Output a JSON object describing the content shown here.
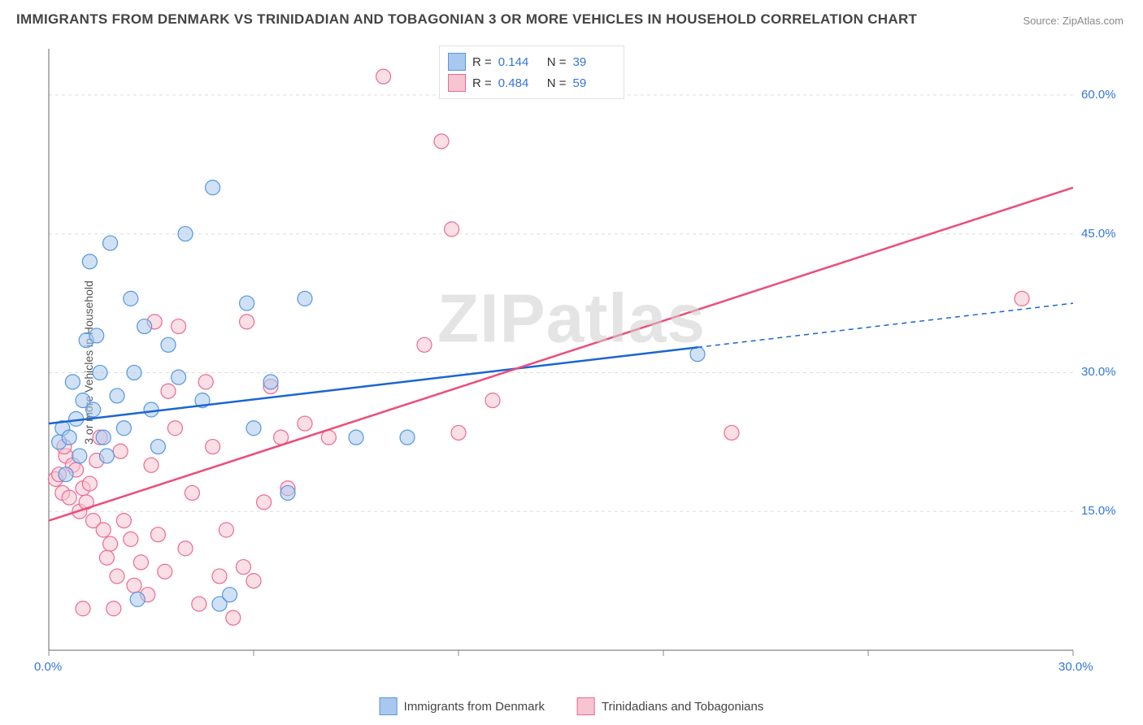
{
  "title": "IMMIGRANTS FROM DENMARK VS TRINIDADIAN AND TOBAGONIAN 3 OR MORE VEHICLES IN HOUSEHOLD CORRELATION CHART",
  "source": "Source: ZipAtlas.com",
  "yaxis_label": "3 or more Vehicles in Household",
  "watermark": "ZIPatlas",
  "chart": {
    "type": "scatter",
    "background_color": "#ffffff",
    "grid_color": "#dddddd",
    "axis_color": "#666666",
    "tick_color": "#888888",
    "tick_label_color": "#3376d6",
    "label_fontsize": 14,
    "tick_fontsize": 15,
    "title_fontsize": 17,
    "marker_radius": 9,
    "marker_opacity": 0.55,
    "xlim": [
      0,
      30
    ],
    "ylim": [
      0,
      65
    ],
    "x_tick_positions": [
      0,
      6,
      12,
      18,
      24,
      30
    ],
    "x_tick_labels": [
      "0.0%",
      "",
      "",
      "",
      "",
      "30.0%"
    ],
    "y_gridlines": [
      15,
      30,
      45,
      60
    ],
    "y_tick_labels": [
      "15.0%",
      "30.0%",
      "45.0%",
      "60.0%"
    ],
    "series": [
      {
        "name": "Immigrants from Denmark",
        "color_fill": "#a9c8ef",
        "color_stroke": "#5596e0",
        "R": "0.144",
        "N": "39",
        "trend": {
          "color": "#1a66d1",
          "width": 2.5,
          "solid_range": [
            0,
            19
          ],
          "dashed_range": [
            19,
            30
          ],
          "y_at_x0": 24.5,
          "y_at_xmax": 37.5
        },
        "points": [
          [
            0.3,
            22.5
          ],
          [
            0.4,
            24.0
          ],
          [
            0.5,
            19.0
          ],
          [
            0.6,
            23.0
          ],
          [
            0.7,
            29.0
          ],
          [
            0.8,
            25.0
          ],
          [
            0.9,
            21.0
          ],
          [
            1.0,
            27.0
          ],
          [
            1.1,
            33.5
          ],
          [
            1.2,
            42.0
          ],
          [
            1.3,
            26.0
          ],
          [
            1.4,
            34.0
          ],
          [
            1.5,
            30.0
          ],
          [
            1.6,
            23.0
          ],
          [
            1.7,
            21.0
          ],
          [
            1.8,
            44.0
          ],
          [
            2.0,
            27.5
          ],
          [
            2.2,
            24.0
          ],
          [
            2.4,
            38.0
          ],
          [
            2.5,
            30.0
          ],
          [
            2.8,
            35.0
          ],
          [
            3.0,
            26.0
          ],
          [
            3.2,
            22.0
          ],
          [
            3.5,
            33.0
          ],
          [
            3.8,
            29.5
          ],
          [
            4.0,
            45.0
          ],
          [
            4.5,
            27.0
          ],
          [
            4.8,
            50.0
          ],
          [
            5.0,
            5.0
          ],
          [
            5.3,
            6.0
          ],
          [
            5.8,
            37.5
          ],
          [
            6.0,
            24.0
          ],
          [
            6.5,
            29.0
          ],
          [
            7.0,
            17.0
          ],
          [
            7.5,
            38.0
          ],
          [
            9.0,
            23.0
          ],
          [
            10.5,
            23.0
          ],
          [
            19.0,
            32.0
          ],
          [
            2.6,
            5.5
          ]
        ]
      },
      {
        "name": "Trinidadians and Tobagonians",
        "color_fill": "#f7c4d1",
        "color_stroke": "#ec6a8f",
        "R": "0.484",
        "N": "59",
        "trend": {
          "color": "#ec4d78",
          "width": 2.5,
          "solid_range": [
            0,
            30
          ],
          "dashed_range": null,
          "y_at_x0": 14.0,
          "y_at_xmax": 50.0
        },
        "points": [
          [
            0.2,
            18.5
          ],
          [
            0.3,
            19.0
          ],
          [
            0.4,
            17.0
          ],
          [
            0.5,
            21.0
          ],
          [
            0.6,
            16.5
          ],
          [
            0.7,
            20.0
          ],
          [
            0.8,
            19.5
          ],
          [
            0.9,
            15.0
          ],
          [
            1.0,
            17.5
          ],
          [
            1.1,
            16.0
          ],
          [
            1.2,
            18.0
          ],
          [
            1.3,
            14.0
          ],
          [
            1.4,
            20.5
          ],
          [
            1.5,
            23.0
          ],
          [
            1.6,
            13.0
          ],
          [
            1.7,
            10.0
          ],
          [
            1.8,
            11.5
          ],
          [
            1.9,
            4.5
          ],
          [
            2.0,
            8.0
          ],
          [
            2.2,
            14.0
          ],
          [
            2.4,
            12.0
          ],
          [
            2.5,
            7.0
          ],
          [
            2.7,
            9.5
          ],
          [
            2.9,
            6.0
          ],
          [
            3.0,
            20.0
          ],
          [
            3.2,
            12.5
          ],
          [
            3.4,
            8.5
          ],
          [
            3.5,
            28.0
          ],
          [
            3.7,
            24.0
          ],
          [
            3.8,
            35.0
          ],
          [
            4.0,
            11.0
          ],
          [
            4.2,
            17.0
          ],
          [
            4.4,
            5.0
          ],
          [
            4.6,
            29.0
          ],
          [
            4.8,
            22.0
          ],
          [
            5.0,
            8.0
          ],
          [
            5.2,
            13.0
          ],
          [
            5.4,
            3.5
          ],
          [
            5.7,
            9.0
          ],
          [
            5.8,
            35.5
          ],
          [
            6.0,
            7.5
          ],
          [
            6.3,
            16.0
          ],
          [
            6.5,
            28.5
          ],
          [
            6.8,
            23.0
          ],
          [
            7.0,
            17.5
          ],
          [
            7.5,
            24.5
          ],
          [
            8.2,
            23.0
          ],
          [
            9.8,
            62.0
          ],
          [
            11.0,
            33.0
          ],
          [
            11.5,
            55.0
          ],
          [
            11.8,
            45.5
          ],
          [
            12.0,
            23.5
          ],
          [
            13.0,
            27.0
          ],
          [
            20.0,
            23.5
          ],
          [
            28.5,
            38.0
          ],
          [
            1.0,
            4.5
          ],
          [
            2.1,
            21.5
          ],
          [
            0.45,
            22.0
          ],
          [
            3.1,
            35.5
          ]
        ]
      }
    ]
  },
  "legend_bottom": {
    "items": [
      "Immigrants from Denmark",
      "Trinidadians and Tobagonians"
    ]
  }
}
